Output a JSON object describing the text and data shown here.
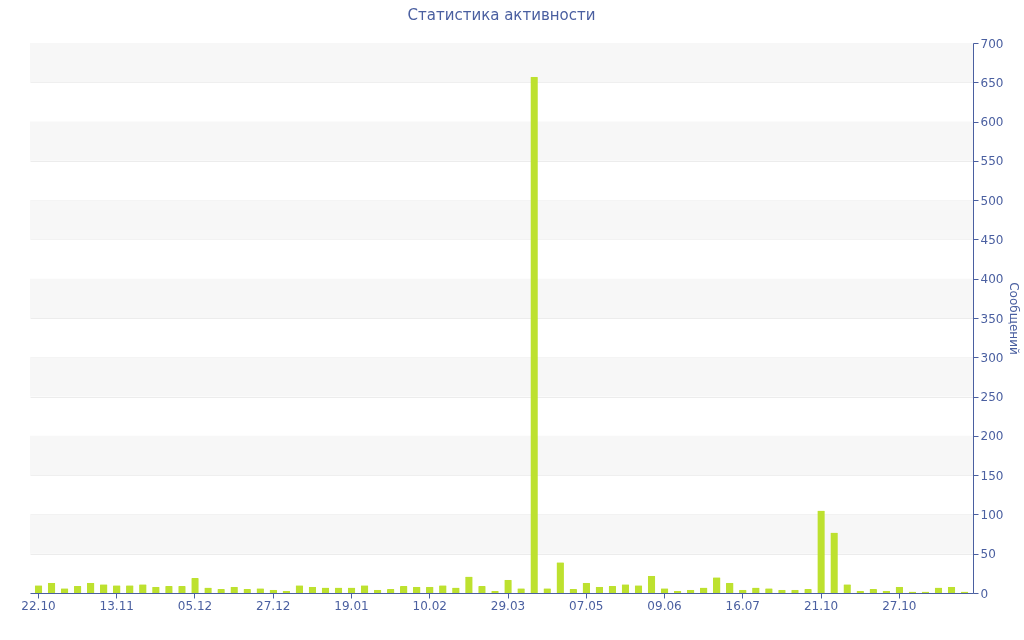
{
  "chart_data": {
    "type": "bar",
    "title": "Статистика активности",
    "ylabel": "Сообщений",
    "categories": [
      "22.10",
      null,
      null,
      null,
      null,
      null,
      "13.11",
      null,
      null,
      null,
      null,
      null,
      "05.12",
      null,
      null,
      null,
      null,
      null,
      "27.12",
      null,
      null,
      null,
      null,
      null,
      "19.01",
      null,
      null,
      null,
      null,
      null,
      "10.02",
      null,
      null,
      null,
      null,
      null,
      "29.03",
      null,
      null,
      null,
      null,
      null,
      "07.05",
      null,
      null,
      null,
      null,
      null,
      "09.06",
      null,
      null,
      null,
      null,
      null,
      "16.07",
      null,
      null,
      null,
      null,
      null,
      "21.10",
      null,
      null,
      null,
      null,
      null,
      "27.10",
      null,
      null,
      null,
      null,
      null
    ],
    "values": [
      10,
      13,
      6,
      9,
      13,
      11,
      10,
      10,
      11,
      8,
      9,
      9,
      19,
      7,
      5,
      8,
      5,
      6,
      4,
      3,
      10,
      8,
      7,
      7,
      7,
      10,
      4,
      5,
      9,
      8,
      8,
      10,
      7,
      21,
      9,
      3,
      17,
      6,
      657,
      6,
      39,
      5,
      13,
      8,
      9,
      11,
      10,
      22,
      6,
      3,
      4,
      7,
      20,
      13,
      4,
      7,
      6,
      4,
      4,
      5,
      105,
      77,
      11,
      3,
      5,
      3,
      8,
      2,
      2,
      7,
      8,
      2
    ],
    "color": "#bde12f",
    "ylim": [
      0,
      700
    ],
    "yticks": [
      0,
      50,
      100,
      150,
      200,
      250,
      300,
      350,
      400,
      450,
      500,
      550,
      600,
      650,
      700
    ],
    "grid": true
  }
}
